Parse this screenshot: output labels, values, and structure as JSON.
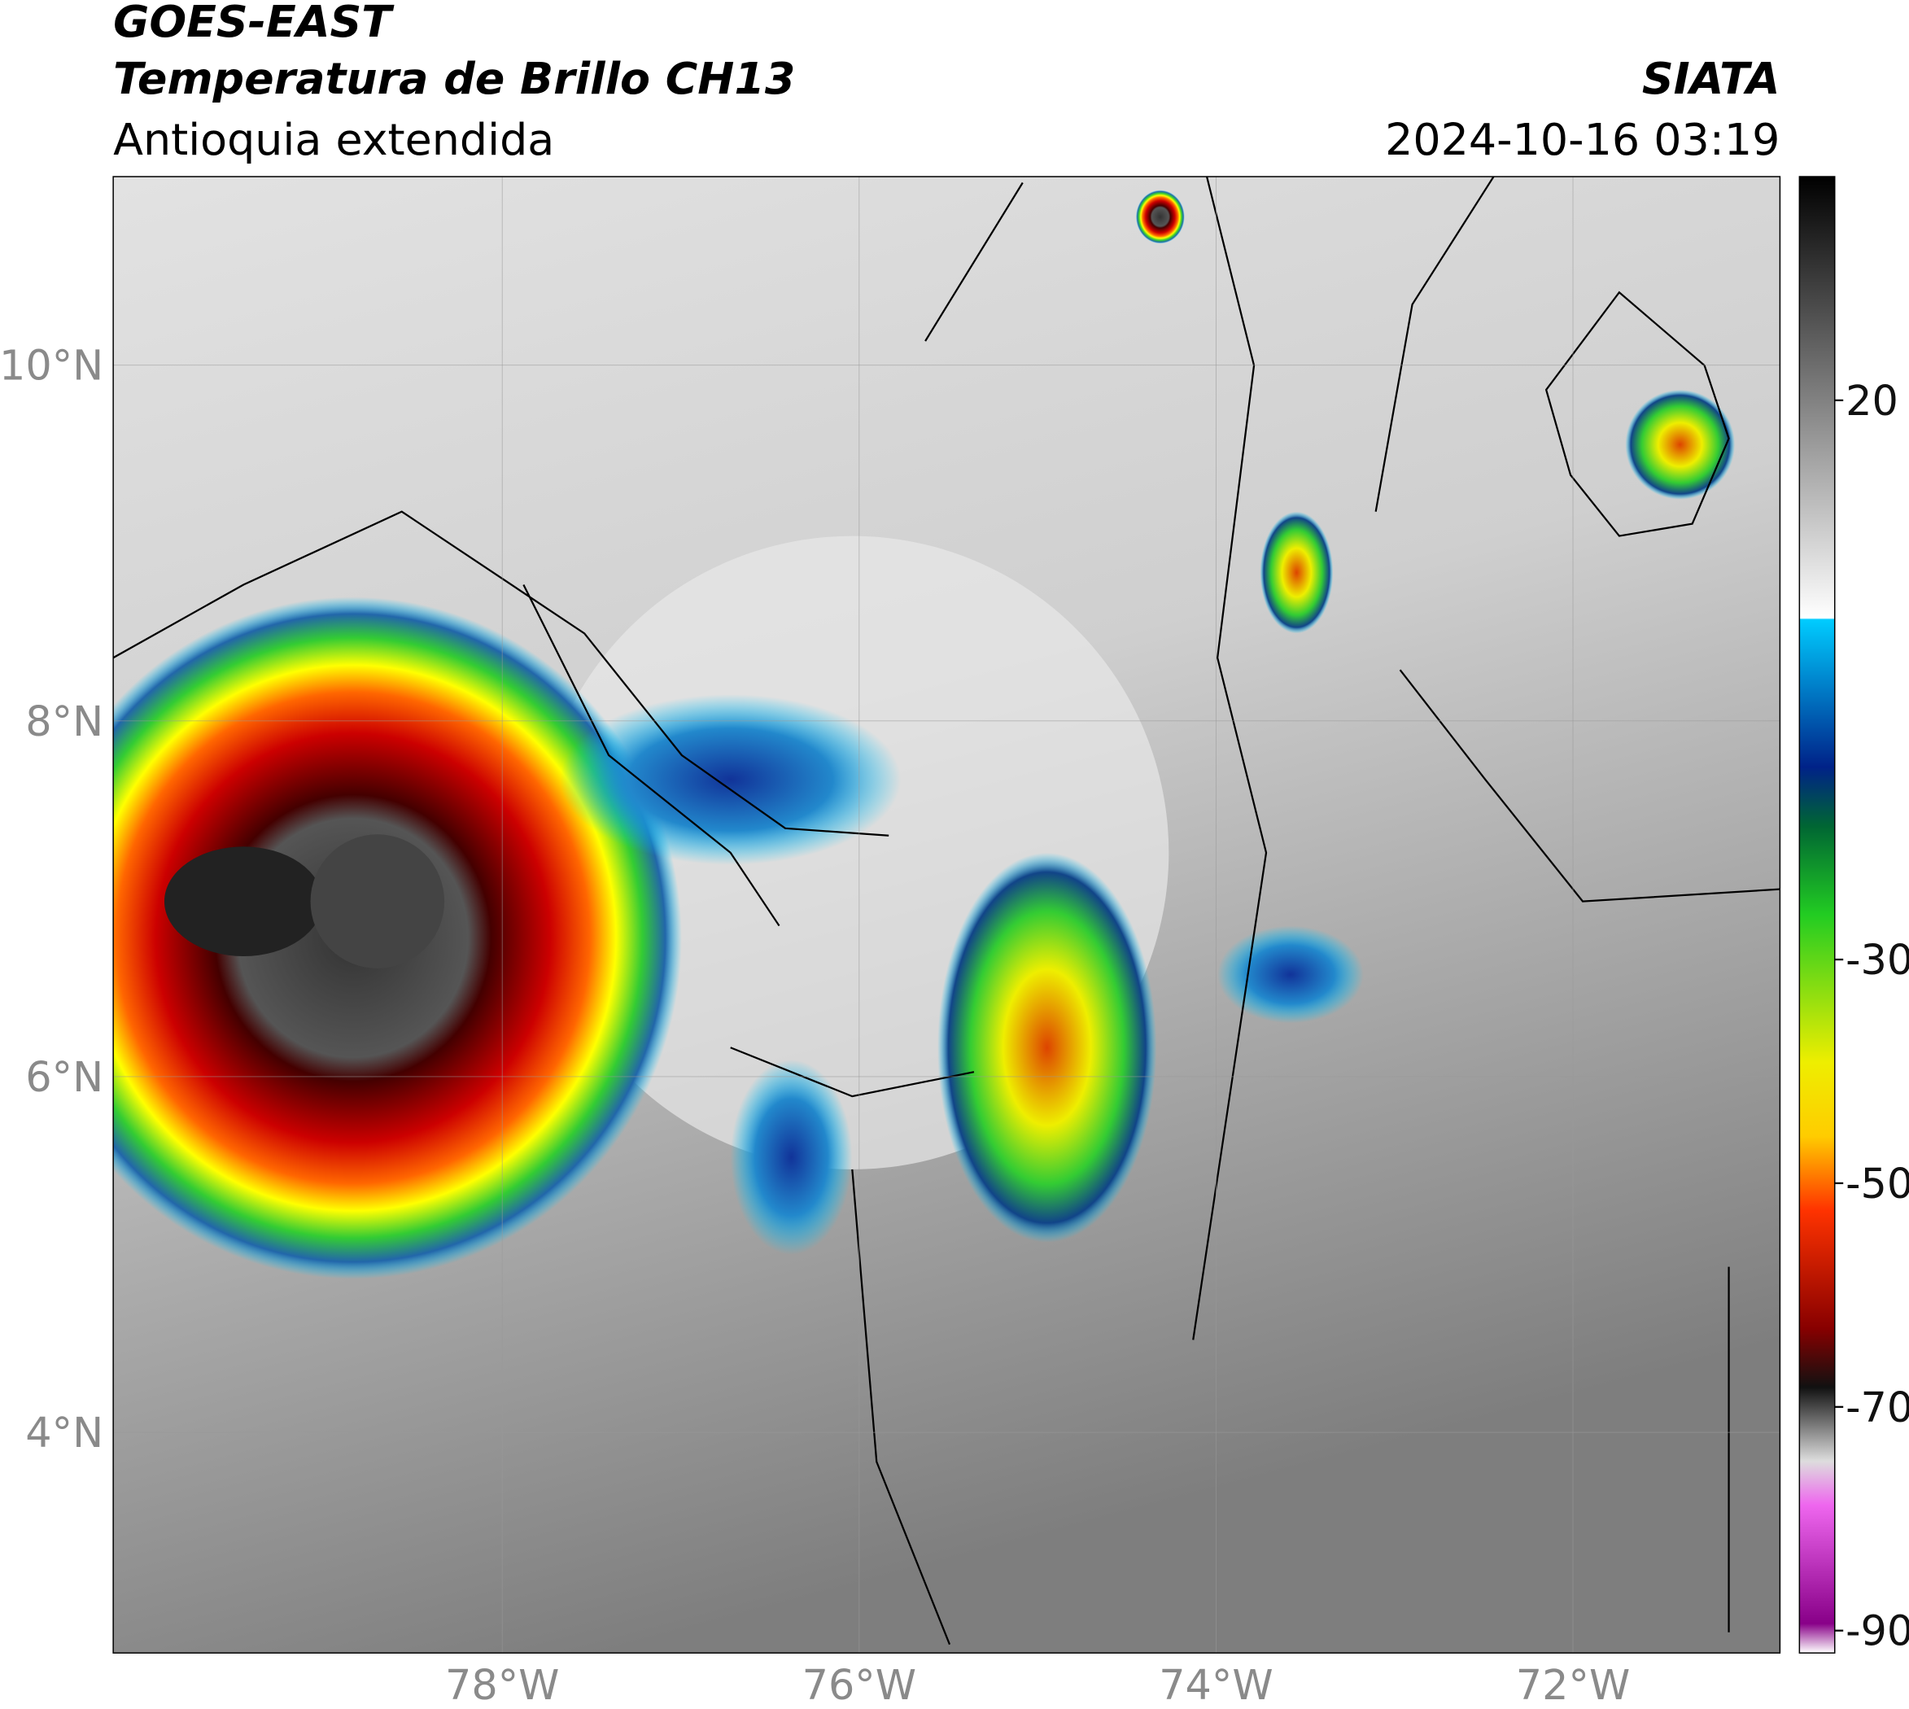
{
  "header": {
    "title": "GOES-EAST",
    "subtitle": "Temperatura de Brillo CH13",
    "region": "Antioquia extendida",
    "source": "SIATA",
    "datetime": "2024-10-16 03:19"
  },
  "map": {
    "xlim": [
      -80.18,
      -70.84
    ],
    "ylim": [
      2.76,
      11.06
    ],
    "lat_ticks": [
      {
        "value": 4,
        "label": "4°N"
      },
      {
        "value": 6,
        "label": "6°N"
      },
      {
        "value": 8,
        "label": "8°N"
      },
      {
        "value": 10,
        "label": "10°N"
      }
    ],
    "lon_ticks": [
      {
        "value": -78,
        "label": "78°W"
      },
      {
        "value": -76,
        "label": "76°W"
      },
      {
        "value": -74,
        "label": "74°W"
      },
      {
        "value": -72,
        "label": "72°W"
      }
    ]
  },
  "colorbar": {
    "lim": [
      -92,
      40
    ],
    "ticks": [
      20,
      -30,
      -50,
      -70,
      -90
    ]
  }
}
